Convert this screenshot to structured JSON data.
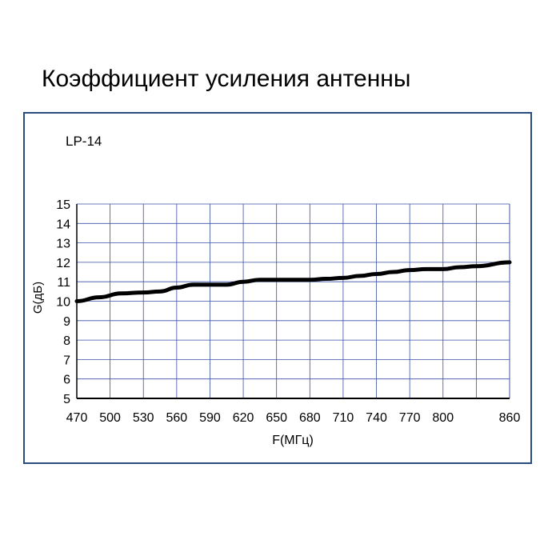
{
  "title": "Коэффициент усиления антенны",
  "model_label": "LP-14",
  "chart_data": {
    "type": "line",
    "title": "Коэффициент усиления антенны",
    "xlabel": "F(МГц)",
    "ylabel": "G(дБ)",
    "xlim": [
      470,
      860
    ],
    "ylim": [
      5,
      15
    ],
    "x_ticks": [
      470,
      500,
      530,
      560,
      590,
      620,
      650,
      680,
      710,
      740,
      770,
      800,
      860
    ],
    "y_ticks": [
      5,
      6,
      7,
      8,
      9,
      10,
      11,
      12,
      13,
      14,
      15
    ],
    "grid": true,
    "colors": {
      "line": "#000000",
      "grid": "#3a4fa6",
      "frame": "#2a4d7f"
    },
    "series": [
      {
        "name": "LP-14",
        "x": [
          470,
          490,
          510,
          530,
          545,
          560,
          575,
          590,
          605,
          620,
          635,
          650,
          665,
          680,
          695,
          710,
          725,
          740,
          755,
          770,
          785,
          800,
          815,
          830,
          860
        ],
        "y": [
          10.0,
          10.2,
          10.4,
          10.45,
          10.5,
          10.7,
          10.85,
          10.85,
          10.85,
          11.0,
          11.1,
          11.1,
          11.1,
          11.1,
          11.15,
          11.2,
          11.3,
          11.4,
          11.5,
          11.6,
          11.65,
          11.65,
          11.75,
          11.8,
          12.0
        ]
      }
    ]
  }
}
